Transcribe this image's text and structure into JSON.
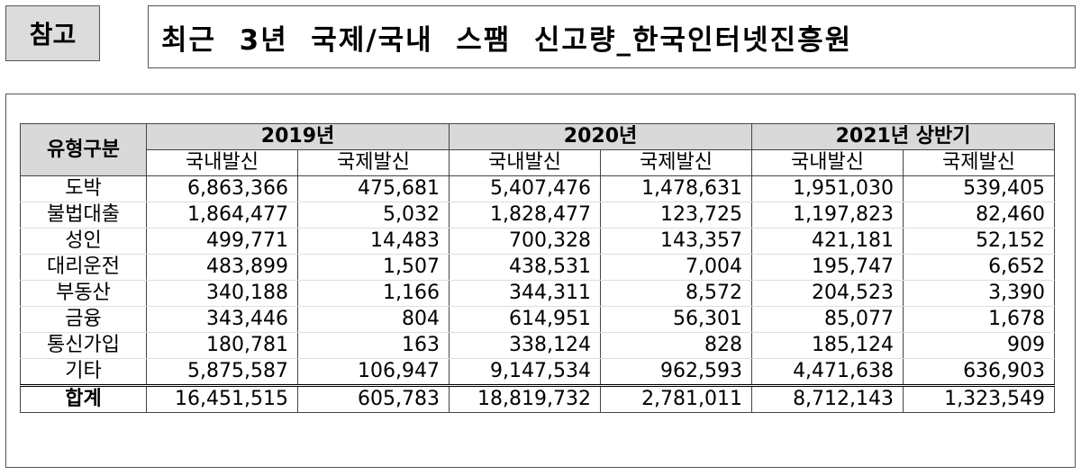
{
  "tag_label": "참고",
  "title": "최근  3년  국제/국내  스팸  신고량_한국인터넷진흥원",
  "table": {
    "corner": "유형구분",
    "years": [
      "2019년",
      "2020년",
      "2021년  상반기"
    ],
    "subheaders": [
      "국내발신",
      "국제발신",
      "국내발신",
      "국제발신",
      "국내발신",
      "국제발신"
    ],
    "rows": [
      {
        "category": "도박",
        "values": [
          "6,863,366",
          "475,681",
          "5,407,476",
          "1,478,631",
          "1,951,030",
          "539,405"
        ]
      },
      {
        "category": "불법대출",
        "values": [
          "1,864,477",
          "5,032",
          "1,828,477",
          "123,725",
          "1,197,823",
          "82,460"
        ]
      },
      {
        "category": "성인",
        "values": [
          "499,771",
          "14,483",
          "700,328",
          "143,357",
          "421,181",
          "52,152"
        ]
      },
      {
        "category": "대리운전",
        "values": [
          "483,899",
          "1,507",
          "438,531",
          "7,004",
          "195,747",
          "6,652"
        ]
      },
      {
        "category": "부동산",
        "values": [
          "340,188",
          "1,166",
          "344,311",
          "8,572",
          "204,523",
          "3,390"
        ]
      },
      {
        "category": "금융",
        "values": [
          "343,446",
          "804",
          "614,951",
          "56,301",
          "85,077",
          "1,678"
        ]
      },
      {
        "category": "통신가입",
        "values": [
          "180,781",
          "163",
          "338,124",
          "828",
          "185,124",
          "909"
        ]
      },
      {
        "category": "기타",
        "values": [
          "5,875,587",
          "106,947",
          "9,147,534",
          "962,593",
          "4,471,638",
          "636,903"
        ]
      }
    ],
    "total": {
      "category": "합계",
      "values": [
        "16,451,515",
        "605,783",
        "18,819,732",
        "2,781,011",
        "8,712,143",
        "1,323,549"
      ]
    }
  }
}
